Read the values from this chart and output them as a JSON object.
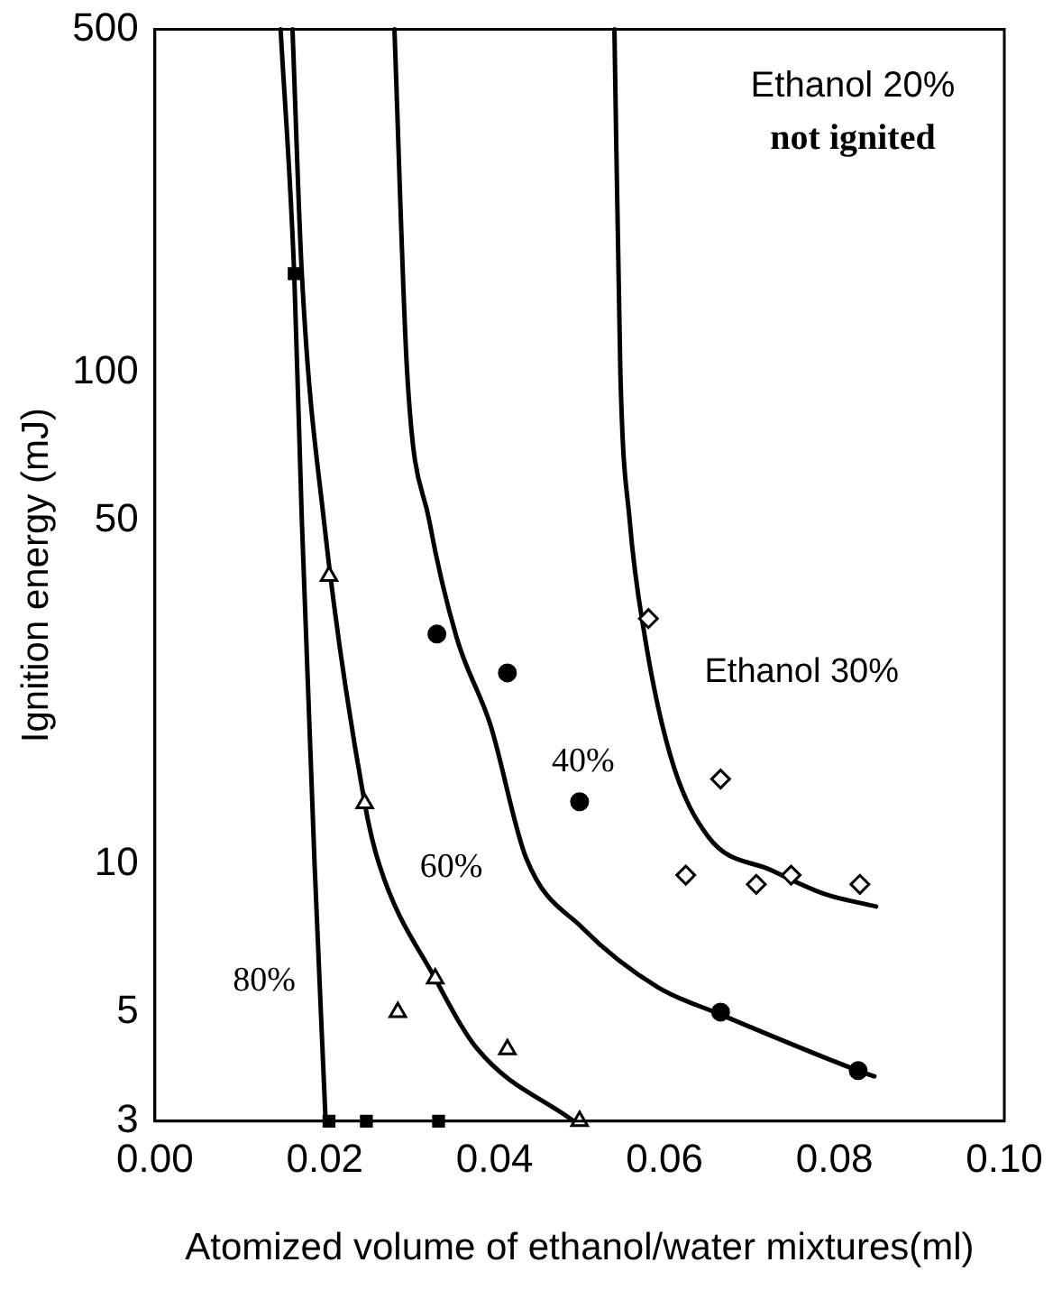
{
  "chart_data": {
    "type": "scatter",
    "xlabel": "Atomized volume of ethanol/water mixtures(ml)",
    "ylabel": "Ignition energy (mJ)",
    "annotations": [
      "Ethanol 20%",
      "not ignited"
    ],
    "xlim": [
      0,
      0.1
    ],
    "xticks": [
      {
        "value": 0,
        "label": "0.00"
      },
      0.02,
      0.04,
      0.06,
      0.08,
      {
        "value": 0.1,
        "label": "0.10"
      }
    ],
    "ylim": [
      3,
      500
    ],
    "yticks": [
      3,
      5,
      10,
      50,
      100,
      500
    ],
    "log": "y",
    "grid": false,
    "legend": false,
    "series": [
      {
        "name": "Ethanol 30%",
        "marker": "diamond",
        "color": "#000000",
        "x": [
          0.0581,
          0.0666,
          0.0625,
          0.0708,
          0.0749,
          0.083
        ],
        "values": [
          31.6,
          14.9,
          9.5,
          9.1,
          9.5,
          9.1
        ]
      },
      {
        "name": "40%",
        "marker": "circle",
        "color": "#000000",
        "x": [
          0.0332,
          0.0415,
          0.05,
          0.0666,
          0.0828
        ],
        "values": [
          29.4,
          24.5,
          13.4,
          5,
          3.8
        ]
      },
      {
        "name": "60%",
        "marker": "triangle",
        "color": "#000000",
        "x": [
          0.0205,
          0.0247,
          0.0286,
          0.033,
          0.0415,
          0.05
        ],
        "values": [
          38.6,
          13.3,
          5,
          5.85,
          4.2,
          3
        ]
      },
      {
        "marker": "square",
        "color": "#000000",
        "x": [
          0.0164,
          0.0205,
          0.0249,
          0.0334
        ],
        "values": [
          159,
          3,
          3,
          3
        ]
      },
      {
        "type": "line",
        "marker": "none",
        "color": "#000000",
        "x": [
          0.0541,
          0.0548,
          0.0559,
          0.0576,
          0.0607,
          0.0651,
          0.0727,
          0.0788,
          0.0849
        ],
        "values": [
          500,
          100,
          50,
          29.6,
          16.6,
          11.4,
          9.7,
          8.7,
          8.2
        ]
      },
      {
        "type": "line",
        "marker": "none",
        "color": "#000000",
        "x": [
          0.0282,
          0.0297,
          0.0323,
          0.0355,
          0.0395,
          0.0437,
          0.0504,
          0.0592,
          0.0664,
          0.0828,
          0.0847
        ],
        "values": [
          500,
          100,
          50,
          29,
          19.2,
          10.3,
          7.4,
          5.62,
          4.96,
          3.8,
          3.7
        ]
      },
      {
        "type": "line",
        "marker": "none",
        "color": "#000000",
        "x": [
          0.0162,
          0.0173,
          0.0199,
          0.0247,
          0.0264,
          0.033,
          0.038,
          0.0493
        ],
        "values": [
          500,
          159,
          50,
          13.3,
          10,
          5.85,
          4.2,
          3
        ]
      },
      {
        "name": "80%",
        "type": "line",
        "marker": "none",
        "color": "#000000",
        "x": [
          0.0148,
          0.0164,
          0.0173,
          0.0188,
          0.0201
        ],
        "values": [
          500,
          159,
          50,
          10,
          3
        ]
      }
    ]
  }
}
